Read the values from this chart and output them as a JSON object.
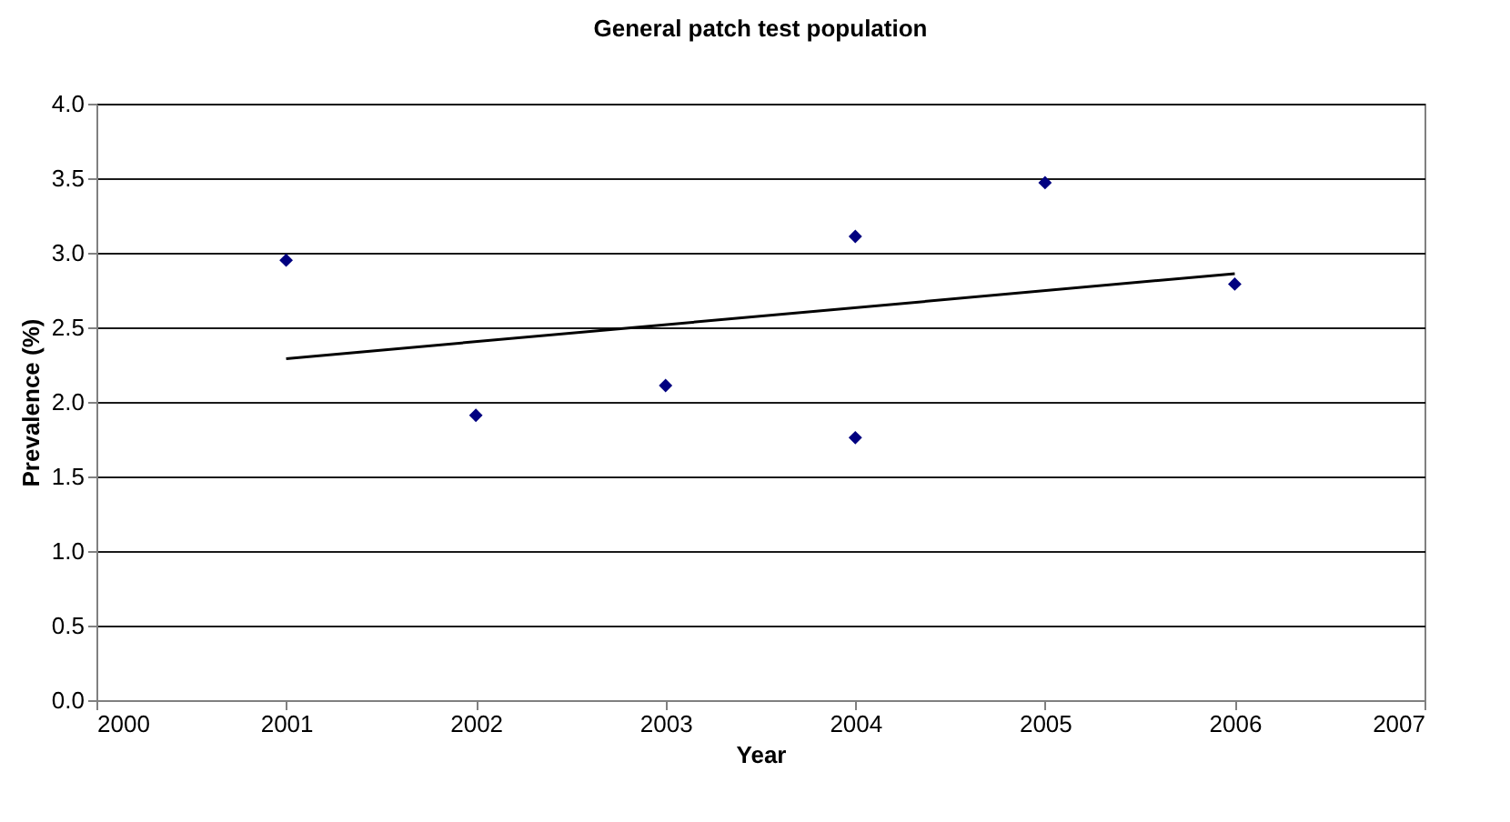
{
  "chart_data": {
    "type": "scatter",
    "title": "General patch test population",
    "xlabel": "Year",
    "ylabel": "Prevalence (%)",
    "series": [
      {
        "color": "#000080",
        "marker": "diamond",
        "x": [
          2001,
          2002,
          2003,
          2004,
          2004,
          2005,
          2006
        ],
        "values": [
          2.95,
          1.91,
          2.11,
          3.11,
          1.76,
          3.47,
          2.79
        ]
      },
      {
        "type": "line",
        "color": "#000000",
        "x": [
          2001,
          2006
        ],
        "values": [
          2.29,
          2.86
        ]
      }
    ],
    "xlim": [
      2000,
      2007
    ],
    "xticks": [
      2000,
      2001,
      2002,
      2003,
      2004,
      2005,
      2006,
      2007
    ],
    "ylim": [
      0,
      4
    ],
    "yticks": [
      {
        "value": 0,
        "label": "0.0"
      },
      {
        "value": 0.5,
        "label": "0.5"
      },
      {
        "value": 1,
        "label": "1.0"
      },
      {
        "value": 1.5,
        "label": "1.5"
      },
      {
        "value": 2,
        "label": "2.0"
      },
      {
        "value": 2.5,
        "label": "2.5"
      },
      {
        "value": 3,
        "label": "3.0"
      },
      {
        "value": 3.5,
        "label": "3.5"
      },
      {
        "value": 4,
        "label": "4.0"
      }
    ],
    "grid": "y"
  }
}
